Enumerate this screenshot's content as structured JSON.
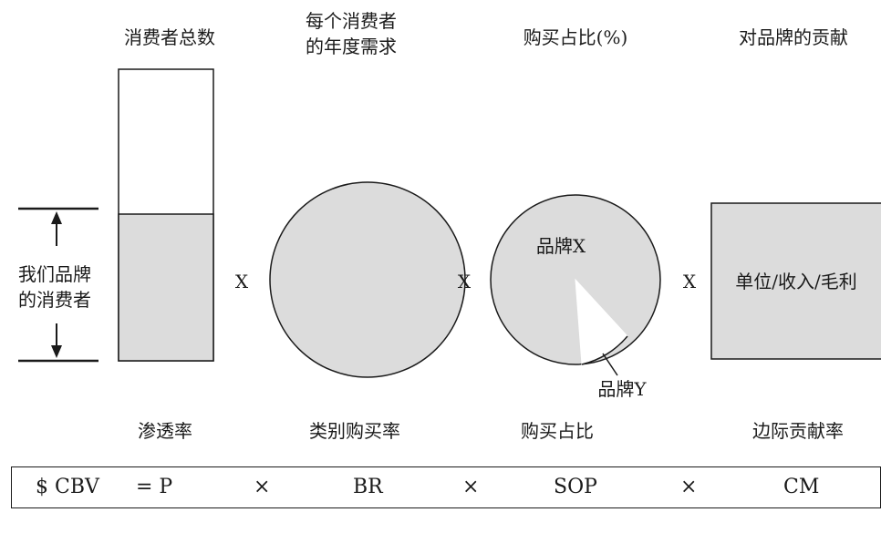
{
  "headers": {
    "total_consumers": "消费者总数",
    "annual_demand_line1": "每个消费者",
    "annual_demand_line2": "的年度需求",
    "purchase_share": "购买占比(%)",
    "brand_contribution": "对品牌的贡献"
  },
  "side_label": {
    "line1": "我们品牌",
    "line2": "的消费者"
  },
  "multipliers": [
    "X",
    "X",
    "X"
  ],
  "pie_labels": {
    "brand_x": "品牌X",
    "brand_y": "品牌Y"
  },
  "square_label": "单位/收入/毛利",
  "footers": {
    "penetration": "渗透率",
    "category_rate": "类别购买率",
    "purchase_share": "购买占比",
    "margin_rate": "边际贡献率"
  },
  "formula": {
    "cbv": "$ CBV",
    "eq_p": "= P",
    "times_1": "×",
    "br": "BR",
    "times_2": "×",
    "sop": "SOP",
    "times_3": "×",
    "cm": "CM"
  },
  "colors": {
    "fill_gray": "#dcdcdc",
    "stroke": "#1a1a1a"
  },
  "icons": {
    "up": "arrow-up-icon",
    "down": "arrow-down-icon"
  }
}
